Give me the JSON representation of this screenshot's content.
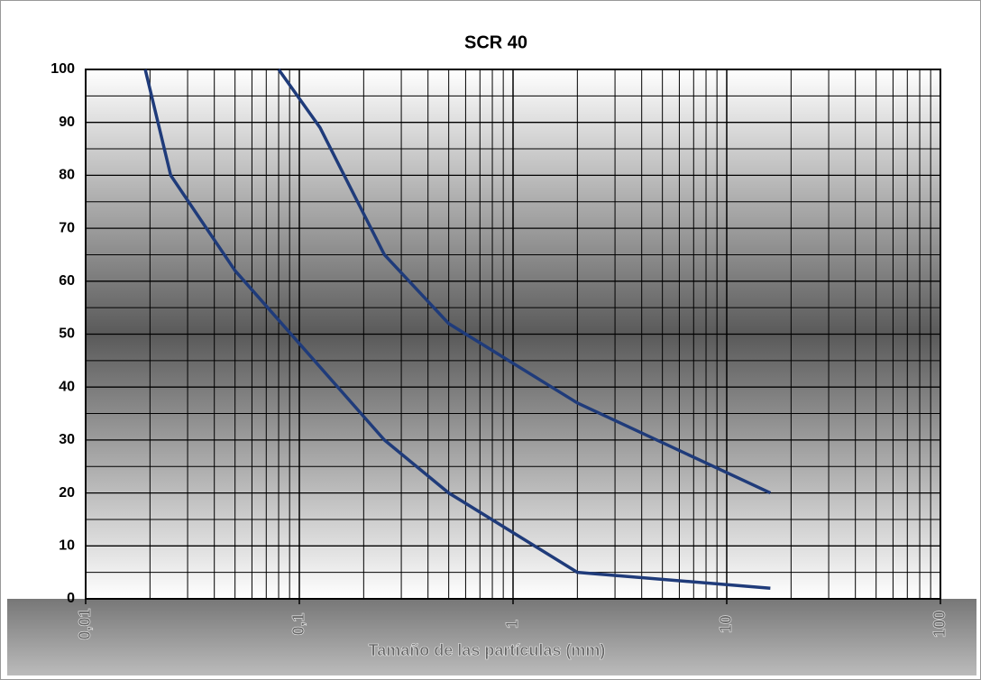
{
  "chart_data": {
    "type": "line",
    "title": "SCR 40",
    "x_label": "Tamaño de las partículas (mm)",
    "xscale": "log",
    "xlim": [
      0.01,
      100
    ],
    "xticks": [
      {
        "value": 0.01,
        "label": "0,01"
      },
      {
        "value": 0.1,
        "label": "0,1"
      },
      1,
      10,
      100
    ],
    "ylim": [
      0,
      100
    ],
    "yticks": [
      0,
      10,
      20,
      30,
      40,
      50,
      60,
      70,
      80,
      90,
      100
    ],
    "grid": true,
    "minor_grid": true,
    "series": [
      {
        "color": "#1f3b7a",
        "x": [
          0.019,
          0.025,
          0.05,
          0.25,
          0.5,
          2,
          16
        ],
        "values": [
          100,
          80,
          62,
          30,
          20,
          5,
          2
        ]
      },
      {
        "color": "#1f3b7a",
        "x": [
          0.08,
          0.125,
          0.25,
          0.5,
          2,
          16
        ],
        "values": [
          100,
          89,
          65,
          52,
          37,
          20
        ]
      }
    ]
  }
}
